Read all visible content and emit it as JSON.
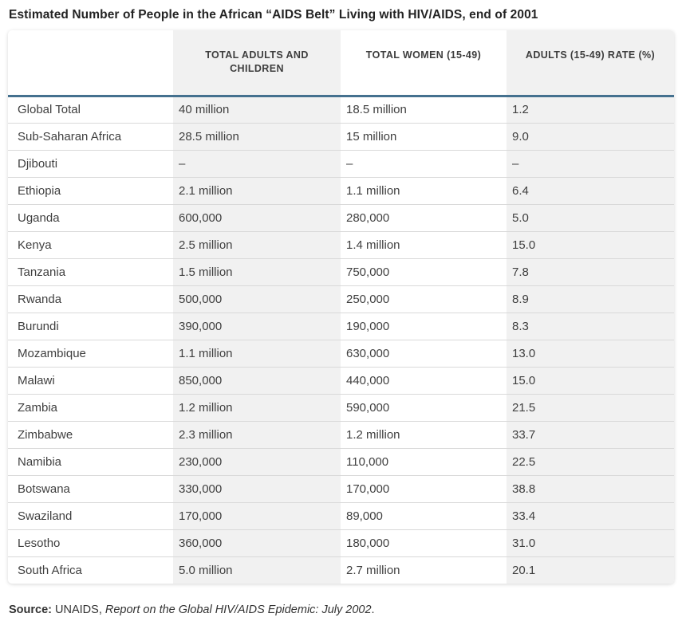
{
  "chart_data": {
    "type": "table",
    "title": "Estimated Number of People in the African “AIDS Belt” Living with HIV/AIDS, end of 2001",
    "columns": [
      "",
      "TOTAL ADULTS AND CHILDREN",
      "TOTAL WOMEN (15-49)",
      "ADULTS (15-49) RATE (%)"
    ],
    "rows": [
      [
        "Global Total",
        "40 million",
        "18.5 million",
        "1.2"
      ],
      [
        "Sub-Saharan Africa",
        "28.5 million",
        "15 million",
        "9.0"
      ],
      [
        "Djibouti",
        "–",
        "–",
        "–"
      ],
      [
        "Ethiopia",
        "2.1 million",
        "1.1 million",
        "6.4"
      ],
      [
        "Uganda",
        "600,000",
        "280,000",
        "5.0"
      ],
      [
        "Kenya",
        "2.5 million",
        "1.4 million",
        "15.0"
      ],
      [
        "Tanzania",
        "1.5 million",
        "750,000",
        "7.8"
      ],
      [
        "Rwanda",
        "500,000",
        "250,000",
        "8.9"
      ],
      [
        "Burundi",
        "390,000",
        "190,000",
        "8.3"
      ],
      [
        "Mozambique",
        "1.1 million",
        "630,000",
        "13.0"
      ],
      [
        "Malawi",
        "850,000",
        "440,000",
        "15.0"
      ],
      [
        "Zambia",
        "1.2 million",
        "590,000",
        "21.5"
      ],
      [
        "Zimbabwe",
        "2.3 million",
        "1.2 million",
        "33.7"
      ],
      [
        "Namibia",
        "230,000",
        "110,000",
        "22.5"
      ],
      [
        "Botswana",
        "330,000",
        "170,000",
        "38.8"
      ],
      [
        "Swaziland",
        "170,000",
        "89,000",
        "33.4"
      ],
      [
        "Lesotho",
        "360,000",
        "180,000",
        "31.0"
      ],
      [
        "South Africa",
        "5.0 million",
        "2.7 million",
        "20.1"
      ]
    ],
    "source": {
      "label": "Source:",
      "agency": " UNAIDS, ",
      "citation": "Report on the Global HIV/AIDS Epidemic: July 2002",
      "suffix": "."
    },
    "layout_hints": {
      "striped_columns": [
        2,
        4
      ],
      "grid": "horizontal-row-dividers",
      "legend_position": "none"
    }
  },
  "colors": {
    "header_rule_blue": "#45718f",
    "column_stripe_gray": "#f1f1f1",
    "row_divider_gray": "#d9d9d9",
    "body_text": "#3f3f3f",
    "header_text": "#3d3d3d",
    "title_text": "#232323",
    "background": "#ffffff"
  }
}
